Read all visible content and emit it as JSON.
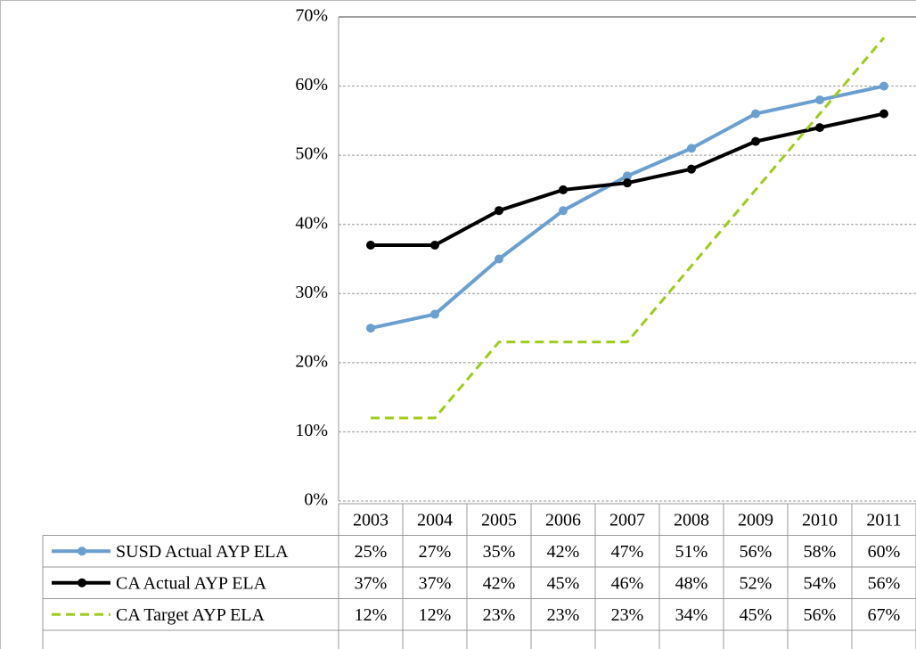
{
  "chart_data": {
    "type": "line",
    "categories": [
      "2003",
      "2004",
      "2005",
      "2006",
      "2007",
      "2008",
      "2009",
      "2010",
      "2011"
    ],
    "ylim": [
      0,
      70
    ],
    "yticks": [
      {
        "value": 0,
        "label": "0%"
      },
      {
        "value": 10,
        "label": "10%"
      },
      {
        "value": 20,
        "label": "20%"
      },
      {
        "value": 30,
        "label": "30%"
      },
      {
        "value": 40,
        "label": "40%"
      },
      {
        "value": 50,
        "label": "50%"
      },
      {
        "value": 60,
        "label": "60%"
      },
      {
        "value": 70,
        "label": "70%"
      }
    ],
    "grid": true,
    "series": [
      {
        "name": "SUSD Actual AYP ELA",
        "color": "#6a9fd0",
        "line_style": "solid",
        "marker": "circle",
        "values": [
          25,
          27,
          35,
          42,
          47,
          51,
          56,
          58,
          60
        ],
        "value_labels": [
          "25%",
          "27%",
          "35%",
          "42%",
          "47%",
          "51%",
          "56%",
          "58%",
          "60%"
        ]
      },
      {
        "name": "CA Actual AYP ELA",
        "color": "#000000",
        "line_style": "solid",
        "marker": "circle",
        "values": [
          37,
          37,
          42,
          45,
          46,
          48,
          52,
          54,
          56
        ],
        "value_labels": [
          "37%",
          "37%",
          "42%",
          "45%",
          "46%",
          "48%",
          "52%",
          "54%",
          "56%"
        ]
      },
      {
        "name": "CA Target AYP ELA",
        "color": "#9ccc1c",
        "line_style": "dashed",
        "marker": "none",
        "values": [
          12,
          12,
          23,
          23,
          23,
          34,
          45,
          56,
          67
        ],
        "value_labels": [
          "12%",
          "12%",
          "23%",
          "23%",
          "23%",
          "34%",
          "45%",
          "56%",
          "67%"
        ]
      }
    ]
  }
}
